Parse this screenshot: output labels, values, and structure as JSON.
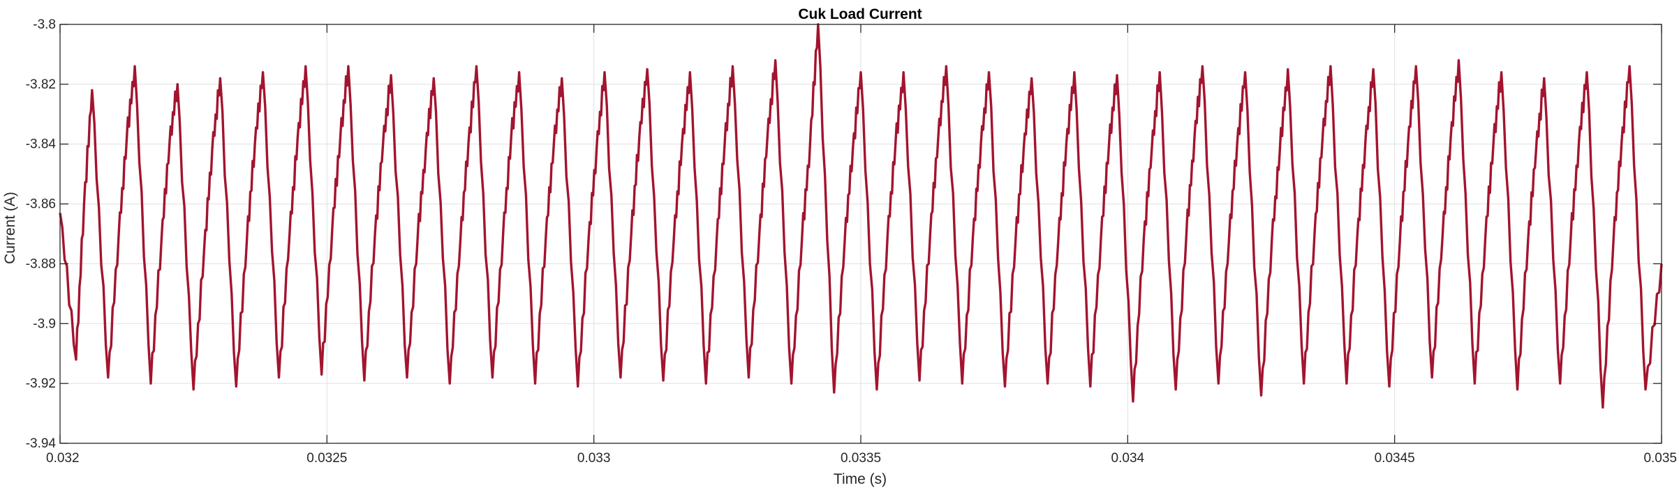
{
  "chart_data": {
    "type": "line",
    "title": "Cuk Load Current",
    "xlabel": "Time (s)",
    "ylabel": "Current (A)",
    "xlim": [
      0.032,
      0.035
    ],
    "ylim": [
      -3.94,
      -3.8
    ],
    "xticks": [
      0.032,
      0.0325,
      0.033,
      0.0335,
      0.034,
      0.0345,
      0.035
    ],
    "xtick_labels": [
      "0.032",
      "0.0325",
      "0.033",
      "0.0335",
      "0.034",
      "0.0345",
      "0.035"
    ],
    "yticks": [
      -3.8,
      -3.82,
      -3.84,
      -3.86,
      -3.88,
      -3.9,
      -3.92,
      -3.94
    ],
    "ytick_labels": [
      "-3.8",
      "-3.82",
      "-3.84",
      "-3.86",
      "-3.88",
      "-3.9",
      "-3.92",
      "-3.94"
    ],
    "grid": true,
    "series": [
      {
        "color": "#a2142f",
        "x": [
          0.032,
          0.03203,
          0.032045,
          0.03206,
          0.03209,
          0.03211,
          0.032125,
          0.03214,
          0.03217,
          0.03219,
          0.032205,
          0.03222,
          0.03225,
          0.03227,
          0.032285,
          0.0323,
          0.03233,
          0.03235,
          0.032365,
          0.03238,
          0.03241,
          0.03243,
          0.032445,
          0.03246,
          0.03249,
          0.03251,
          0.032525,
          0.03254,
          0.03257,
          0.03259,
          0.032605,
          0.03262,
          0.03265,
          0.03267,
          0.032685,
          0.0327,
          0.03273,
          0.03275,
          0.032765,
          0.03278,
          0.03281,
          0.03283,
          0.032845,
          0.03286,
          0.03289,
          0.03291,
          0.032925,
          0.03294,
          0.03297,
          0.03299,
          0.033005,
          0.03302,
          0.03305,
          0.03307,
          0.033085,
          0.0331,
          0.03313,
          0.03315,
          0.033165,
          0.03318,
          0.03321,
          0.03323,
          0.033245,
          0.03326,
          0.03329,
          0.03331,
          0.033325,
          0.03334,
          0.03337,
          0.03339,
          0.033405,
          0.03342,
          0.03345,
          0.03347,
          0.033485,
          0.0335,
          0.03353,
          0.03355,
          0.033565,
          0.03358,
          0.03361,
          0.03363,
          0.033645,
          0.03366,
          0.03369,
          0.03371,
          0.033725,
          0.03374,
          0.03377,
          0.03379,
          0.033805,
          0.03382,
          0.03385,
          0.03387,
          0.033885,
          0.0339,
          0.03393,
          0.03395,
          0.033965,
          0.03398,
          0.03401,
          0.03403,
          0.034045,
          0.03406,
          0.03409,
          0.03411,
          0.034125,
          0.03414,
          0.03417,
          0.03419,
          0.034205,
          0.03422,
          0.03425,
          0.03427,
          0.034285,
          0.0343,
          0.03433,
          0.03435,
          0.034365,
          0.03438,
          0.03441,
          0.03443,
          0.034445,
          0.03446,
          0.03449,
          0.03451,
          0.034525,
          0.03454,
          0.03457,
          0.03459,
          0.034605,
          0.03462,
          0.03465,
          0.03467,
          0.034685,
          0.0347,
          0.03473,
          0.03475,
          0.034765,
          0.03478,
          0.03481,
          0.03483,
          0.034845,
          0.03486,
          0.03489,
          0.03491,
          0.034925,
          0.03494,
          0.03497,
          0.035
        ],
        "y": [
          -3.863,
          -3.912,
          -3.86,
          -3.822,
          -3.918,
          -3.87,
          -3.838,
          -3.814,
          -3.92,
          -3.872,
          -3.84,
          -3.82,
          -3.922,
          -3.875,
          -3.842,
          -3.818,
          -3.921,
          -3.872,
          -3.84,
          -3.816,
          -3.918,
          -3.87,
          -3.838,
          -3.814,
          -3.917,
          -3.868,
          -3.838,
          -3.814,
          -3.919,
          -3.87,
          -3.84,
          -3.817,
          -3.918,
          -3.871,
          -3.842,
          -3.818,
          -3.92,
          -3.872,
          -3.84,
          -3.814,
          -3.918,
          -3.87,
          -3.838,
          -3.816,
          -3.92,
          -3.871,
          -3.84,
          -3.818,
          -3.921,
          -3.872,
          -3.842,
          -3.816,
          -3.918,
          -3.87,
          -3.838,
          -3.815,
          -3.919,
          -3.871,
          -3.84,
          -3.816,
          -3.92,
          -3.872,
          -3.84,
          -3.814,
          -3.918,
          -3.87,
          -3.838,
          -3.812,
          -3.92,
          -3.871,
          -3.84,
          -3.8,
          -3.923,
          -3.872,
          -3.842,
          -3.816,
          -3.922,
          -3.871,
          -3.84,
          -3.816,
          -3.919,
          -3.87,
          -3.838,
          -3.814,
          -3.92,
          -3.871,
          -3.84,
          -3.816,
          -3.921,
          -3.872,
          -3.842,
          -3.818,
          -3.92,
          -3.872,
          -3.84,
          -3.816,
          -3.921,
          -3.871,
          -3.84,
          -3.817,
          -3.926,
          -3.872,
          -3.842,
          -3.816,
          -3.922,
          -3.87,
          -3.838,
          -3.814,
          -3.92,
          -3.871,
          -3.84,
          -3.816,
          -3.924,
          -3.872,
          -3.842,
          -3.815,
          -3.92,
          -3.87,
          -3.838,
          -3.814,
          -3.92,
          -3.871,
          -3.84,
          -3.815,
          -3.921,
          -3.872,
          -3.84,
          -3.814,
          -3.918,
          -3.87,
          -3.838,
          -3.812,
          -3.92,
          -3.871,
          -3.84,
          -3.816,
          -3.922,
          -3.872,
          -3.842,
          -3.818,
          -3.92,
          -3.871,
          -3.84,
          -3.816,
          -3.928,
          -3.872,
          -3.84,
          -3.814,
          -3.922,
          -3.88
        ]
      }
    ]
  }
}
